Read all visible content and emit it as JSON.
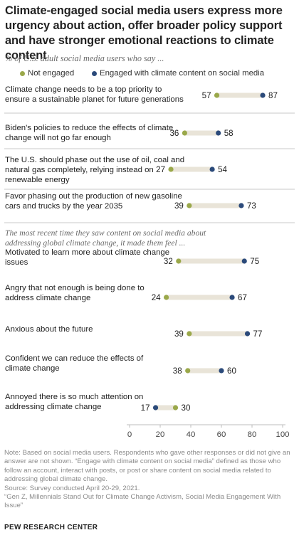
{
  "header": {
    "title": "Climate-engaged social media users express more urgency about action, offer broader policy support and have stronger emotional reactions to climate content",
    "subtitle": "% of U.S. adult social media users who say ..."
  },
  "colors": {
    "not_engaged": "#9aa84a",
    "engaged": "#2b4a7a",
    "bar": "#e9e4d8",
    "divider": "#c8c8c8"
  },
  "chart_data": {
    "type": "dot",
    "xlim": [
      0,
      100
    ],
    "xticks": [
      0,
      20,
      40,
      60,
      80,
      100
    ],
    "legend": [
      "Not engaged",
      "Engaged with climate content on social media"
    ],
    "section_label": "The most recent time they saw content on social media about addressing global climate change, it made them feel ...",
    "rows": [
      {
        "label": "Climate change needs to be a top priority to ensure a sustainable planet for future generations",
        "not_engaged": 57,
        "engaged": 87
      },
      {
        "label": "Biden's policies to reduce the effects of climate change will not go far enough",
        "not_engaged": 36,
        "engaged": 58
      },
      {
        "label": "The U.S. should phase out the use of oil, coal and natural gas completely, relying instead on renewable energy",
        "not_engaged": 27,
        "engaged": 54
      },
      {
        "label": "Favor phasing out the production of new gasoline cars and trucks by the year 2035",
        "not_engaged": 39,
        "engaged": 73
      },
      {
        "label": "Motivated to learn more about climate change issues",
        "not_engaged": 32,
        "engaged": 75
      },
      {
        "label": "Angry that not enough is being done to address climate change",
        "not_engaged": 24,
        "engaged": 67
      },
      {
        "label": "Anxious about the future",
        "not_engaged": 39,
        "engaged": 77
      },
      {
        "label": "Confident we can reduce the effects of climate change",
        "not_engaged": 38,
        "engaged": 60
      },
      {
        "label": "Annoyed there is so much attention on addressing climate change",
        "not_engaged": 30,
        "engaged": 17
      }
    ]
  },
  "footer": {
    "note": "Note: Based on social media users. Respondents who gave other responses or did not give an answer are not shown. “Engage with climate content on social media” defined as those who follow an account, interact with posts, or post or share content on social media related to addressing global climate change.",
    "source": "Source: Survey conducted April 20-29, 2021.",
    "report": "“Gen Z, Millennials Stand Out for Climate Change Activism, Social Media Engagement With Issue”",
    "logo": "PEW RESEARCH CENTER"
  }
}
